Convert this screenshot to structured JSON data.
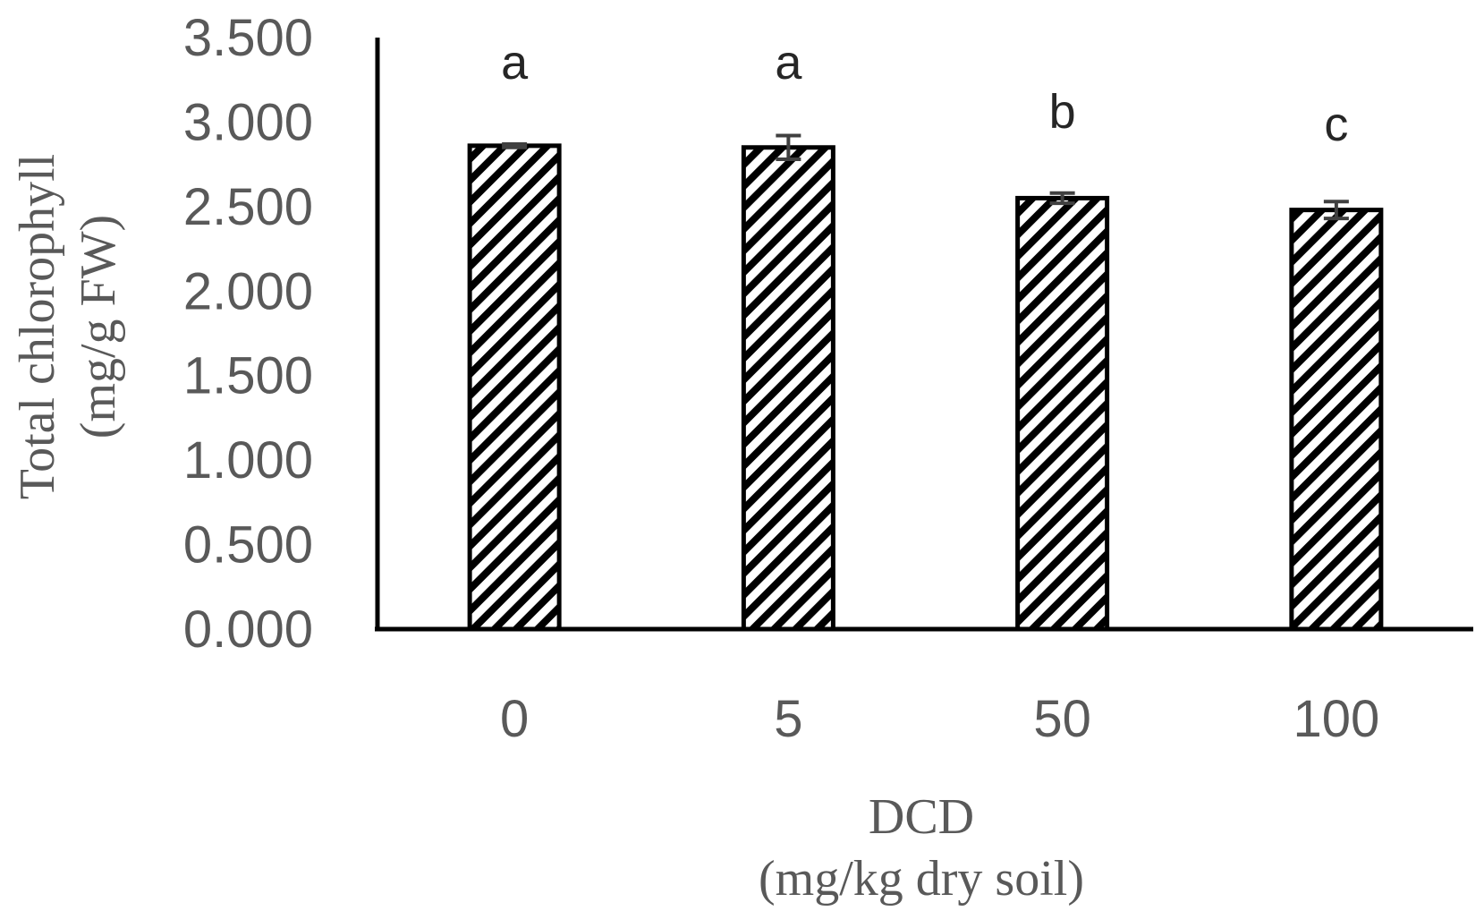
{
  "chart_data": {
    "type": "bar",
    "categories": [
      "0",
      "5",
      "50",
      "100"
    ],
    "values": [
      2.86,
      2.85,
      2.55,
      2.48
    ],
    "errors": [
      0.01,
      0.07,
      0.03,
      0.05
    ],
    "significance_labels": [
      "a",
      "a",
      "b",
      "c"
    ],
    "yticks": [
      "0.000",
      "0.500",
      "1.000",
      "1.500",
      "2.000",
      "2.500",
      "3.000",
      "3.500"
    ],
    "ylim": [
      0,
      3.5
    ],
    "ylabel_line1": "Total chlorophyll",
    "ylabel_line2": "(mg/g FW)",
    "xlabel_line1": "DCD",
    "xlabel_line2": "(mg/kg dry soil)",
    "grid": false,
    "bar_pattern": "diagonal-stripes",
    "colors": {
      "bar_stroke": "#000000",
      "bar_stripe": "#000000",
      "bar_fill": "#ffffff",
      "axis": "#000000",
      "error_bar": "#404040",
      "tick_text": "#595959"
    }
  }
}
